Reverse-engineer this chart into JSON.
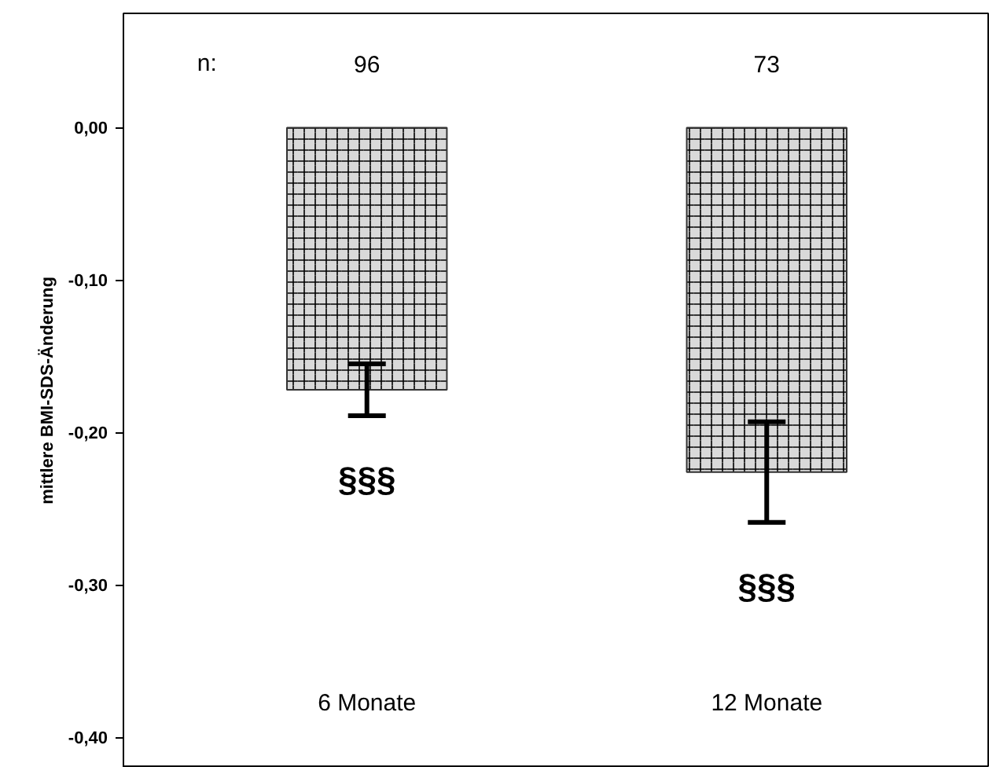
{
  "chart_data": {
    "type": "bar",
    "ylabel": "mittlere BMI-SDS-Änderung",
    "categories": [
      "6 Monate",
      "12 Monate"
    ],
    "values": [
      -0.172,
      -0.226
    ],
    "errors": [
      0.017,
      0.033
    ],
    "color": "#d9d9d9",
    "ylim": [
      -0.42,
      0.075
    ],
    "yticks": [
      {
        "value": 0,
        "label": "0,00"
      },
      {
        "value": -0.1,
        "label": "-0,10"
      },
      {
        "value": -0.2,
        "label": "-0,20"
      },
      {
        "value": -0.3,
        "label": "-0,30"
      },
      {
        "value": -0.4,
        "label": "-0,40"
      }
    ],
    "grid": false,
    "annotations": [
      "n:",
      "96",
      "73",
      "§§§",
      "§§§"
    ]
  }
}
